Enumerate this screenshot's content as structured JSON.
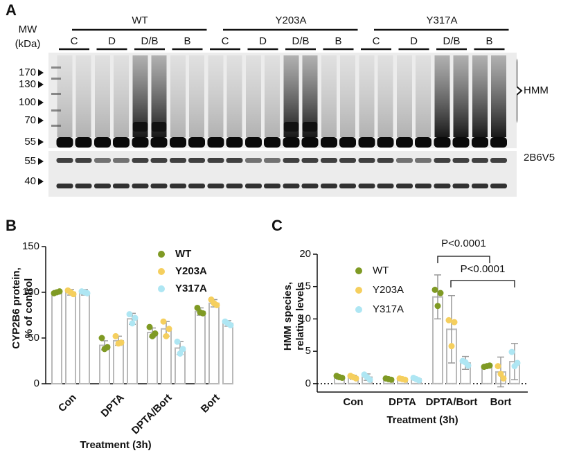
{
  "panel_labels": [
    "A",
    "B",
    "C"
  ],
  "blot": {
    "mw_title": [
      "MW",
      "(kDa)"
    ],
    "groups": [
      {
        "name": "WT",
        "lanes": [
          "C",
          "D",
          "D/B",
          "B"
        ]
      },
      {
        "name": "Y203A",
        "lanes": [
          "C",
          "D",
          "D/B",
          "B"
        ]
      },
      {
        "name": "Y317A",
        "lanes": [
          "C",
          "D",
          "D/B",
          "B"
        ]
      }
    ],
    "upper_markers": [
      170,
      130,
      100,
      70,
      55
    ],
    "lower_markers": [
      55,
      40
    ],
    "hmm_label": "HMM",
    "band_label": "2B6V5"
  },
  "chart_data": [
    {
      "type": "bar",
      "y_label": [
        "CYP2B6 protein,",
        "% of control"
      ],
      "x_label": "Treatment (3h)",
      "categories": [
        "Con",
        "DPTA",
        "DPTA/Bort",
        "Bort"
      ],
      "ylim": [
        0,
        150
      ],
      "yticks": [
        0,
        50,
        100,
        150
      ],
      "legend_bold": true,
      "series": [
        {
          "name": "WT",
          "color": "#7f9a24",
          "values": [
            100,
            42,
            56,
            79
          ],
          "errors": [
            2,
            5,
            5,
            4
          ],
          "points": [
            [
              99,
              101,
              100
            ],
            [
              50,
              40,
              38
            ],
            [
              62,
              55,
              52
            ],
            [
              83,
              77,
              78
            ]
          ]
        },
        {
          "name": "Y203A",
          "color": "#f5cf5e",
          "values": [
            100,
            47,
            60,
            88
          ],
          "errors": [
            3,
            5,
            8,
            4
          ],
          "points": [
            [
              102,
              98,
              100
            ],
            [
              52,
              45,
              44
            ],
            [
              68,
              60,
              52
            ],
            [
              92,
              86,
              88
            ]
          ]
        },
        {
          "name": "Y317A",
          "color": "#aee6f3",
          "values": [
            100,
            71,
            39,
            66
          ],
          "errors": [
            3,
            6,
            7,
            3
          ],
          "points": [
            [
              101,
              99,
              100
            ],
            [
              76,
              72,
              66
            ],
            [
              46,
              38,
              33
            ],
            [
              68,
              64,
              66
            ]
          ]
        }
      ]
    },
    {
      "type": "bar",
      "y_label": [
        "HMM species,",
        "relative levels"
      ],
      "x_label": "Treatment (3h)",
      "categories": [
        "Con",
        "DPTA",
        "DPTA/Bort",
        "Bort"
      ],
      "ylim": [
        -1.3,
        20
      ],
      "yticks": [
        0,
        5,
        10,
        15,
        20
      ],
      "legend_bold": false,
      "zero_line": true,
      "annotations": [
        "P<0.0001",
        "P<0.0001"
      ],
      "series": [
        {
          "name": "WT",
          "color": "#7f9a24",
          "values": [
            1.0,
            0.7,
            13.4,
            2.7
          ],
          "errors": [
            0.3,
            0.1,
            3.4,
            0.3
          ],
          "points": [
            [
              1.2,
              0.9,
              1.0
            ],
            [
              0.8,
              0.6,
              0.7
            ],
            [
              14.5,
              14,
              12
            ],
            [
              2.6,
              2.8,
              2.7
            ]
          ]
        },
        {
          "name": "Y203A",
          "color": "#f5cf5e",
          "values": [
            1.0,
            0.7,
            8.4,
            1.8
          ],
          "errors": [
            0.3,
            0.1,
            5.2,
            2.3
          ],
          "points": [
            [
              1.2,
              0.8,
              1.0
            ],
            [
              0.8,
              0.6,
              0.7
            ],
            [
              9.8,
              9.5,
              5.8
            ],
            [
              2.7,
              0.8,
              1.5
            ]
          ]
        },
        {
          "name": "Y317A",
          "color": "#aee6f3",
          "values": [
            1.0,
            0.7,
            3.2,
            3.4
          ],
          "errors": [
            0.5,
            0.2,
            1.0,
            2.8
          ],
          "points": [
            [
              1.4,
              0.6,
              1.0
            ],
            [
              0.9,
              0.5,
              0.7
            ],
            [
              3.5,
              2.8,
              3.3
            ],
            [
              4.9,
              3.2,
              2.7
            ]
          ]
        }
      ]
    }
  ]
}
